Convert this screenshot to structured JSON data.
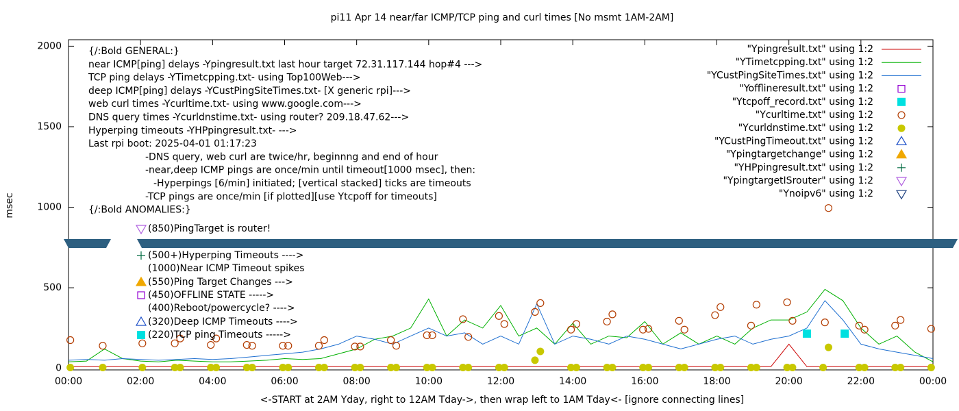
{
  "chart_data": {
    "type": "line",
    "title": "pi11 Apr 14  near/far ICMP/TCP ping and curl times [No msmt 1AM-2AM]",
    "xlabel": "<-START at 2AM Yday, right to 12AM Tday->, then wrap left to 1AM Tday<- [ignore connecting lines]",
    "ylabel": "msec",
    "xlim": [
      0,
      24
    ],
    "ylim": [
      -10,
      2040
    ],
    "xticks": [
      {
        "value": 0,
        "label": "00:00"
      },
      {
        "value": 2,
        "label": "02:00"
      },
      {
        "value": 4,
        "label": "04:00"
      },
      {
        "value": 6,
        "label": "06:00"
      },
      {
        "value": 8,
        "label": "08:00"
      },
      {
        "value": 10,
        "label": "10:00"
      },
      {
        "value": 12,
        "label": "12:00"
      },
      {
        "value": 14,
        "label": "14:00"
      },
      {
        "value": 16,
        "label": "16:00"
      },
      {
        "value": 18,
        "label": "18:00"
      },
      {
        "value": 20,
        "label": "20:00"
      },
      {
        "value": 22,
        "label": "22:00"
      },
      {
        "value": 24,
        "label": "00:00"
      }
    ],
    "yticks": [
      0,
      500,
      1000,
      1500,
      2000
    ],
    "legend": "upper right",
    "annotations": [
      "{/:Bold GENERAL:}",
      "near ICMP[ping] delays -Ypingresult.txt last hour target 72.31.117.144 hop#4 --->",
      "TCP ping delays -YTimetcpping.txt- using Top100Web--->",
      "deep ICMP[ping] delays -YCustPingSiteTimes.txt- [X generic rpi]--->",
      "web curl times -Ycurltime.txt- using www.google.com--->",
      "DNS query times -Ycurldnstime.txt- using router? 209.18.47.62--->",
      "Hyperping timeouts -YHPpingresult.txt- --->",
      "Last rpi boot: 2025-04-01 01:17:23",
      "-DNS query, web curl are twice/hr, beginnng and end of hour",
      "-near,deep ICMP pings are once/min until timeout[1000 msec], then:",
      "-Hyperpings [6/min] initiated; [vertical stacked] ticks are timeouts",
      "-TCP pings are once/min [if plotted][use Ytcpoff for timeouts]",
      "{/:Bold ANOMALIES:}"
    ],
    "key_notes": [
      "(850)PingTarget is router!",
      "(500+)Hyperping Timeouts ---->",
      "(1000)Near ICMP Timeout spikes",
      "(550)Ping Target Changes --->",
      "(450)OFFLINE STATE ----->",
      "(400)Reboot/powercycle? ---->",
      "(320)Deep ICMP Timeouts ---->",
      "(220)TCP ping Timeouts ----->"
    ],
    "series": [
      {
        "name": "\"Ypingresult.txt\" using 1:2",
        "color": "#cc0000",
        "marker": "line",
        "x": [
          0,
          0.5,
          1,
          1.5,
          2,
          2.5,
          3,
          3.5,
          4,
          4.5,
          5,
          5.5,
          6,
          6.5,
          7,
          7.5,
          8,
          8.5,
          9,
          9.5,
          10,
          10.5,
          11,
          11.5,
          12,
          12.5,
          13,
          13.5,
          14,
          14.5,
          15,
          15.5,
          16,
          16.5,
          17,
          17.5,
          18,
          18.5,
          19,
          19.5,
          20,
          20.5,
          21,
          21.5,
          22,
          22.5,
          23,
          23.5,
          24
        ],
        "values": [
          10,
          10,
          10,
          10,
          10,
          10,
          10,
          10,
          10,
          10,
          10,
          10,
          10,
          10,
          10,
          10,
          10,
          10,
          10,
          10,
          10,
          10,
          10,
          10,
          10,
          10,
          10,
          10,
          10,
          10,
          10,
          10,
          10,
          10,
          10,
          10,
          10,
          10,
          10,
          10,
          150,
          10,
          10,
          10,
          10,
          10,
          10,
          10,
          10
        ]
      },
      {
        "name": "\"YTimetcpping.txt\" using 1:2",
        "color": "#00b000",
        "marker": "line",
        "x": [
          0,
          0.5,
          1,
          1.5,
          2,
          2.5,
          3,
          3.5,
          4,
          4.5,
          5,
          5.5,
          6,
          6.5,
          7,
          7.5,
          8,
          8.5,
          9,
          9.5,
          10,
          10.5,
          11,
          11.5,
          12,
          12.5,
          13,
          13.5,
          14,
          14.5,
          15,
          15.5,
          16,
          16.5,
          17,
          17.5,
          18,
          18.5,
          19,
          19.5,
          20,
          20.5,
          21,
          21.5,
          22,
          22.5,
          23,
          23.5,
          24
        ],
        "values": [
          40,
          45,
          120,
          60,
          45,
          40,
          50,
          45,
          40,
          40,
          45,
          50,
          60,
          55,
          60,
          90,
          120,
          180,
          200,
          250,
          430,
          200,
          300,
          250,
          390,
          200,
          250,
          150,
          280,
          150,
          200,
          190,
          290,
          150,
          220,
          150,
          200,
          150,
          250,
          300,
          300,
          350,
          490,
          420,
          250,
          150,
          200,
          100,
          40
        ]
      },
      {
        "name": "\"YCustPingSiteTimes.txt\" using 1:2",
        "color": "#1e6fd0",
        "marker": "line",
        "x": [
          0,
          0.5,
          1,
          1.5,
          2,
          2.5,
          3,
          3.5,
          4,
          4.5,
          5,
          5.5,
          6,
          6.5,
          7,
          7.5,
          8,
          8.5,
          9,
          9.5,
          10,
          10.5,
          11,
          11.5,
          12,
          12.5,
          13,
          13.5,
          14,
          14.5,
          15,
          15.5,
          16,
          16.5,
          17,
          17.5,
          18,
          18.5,
          19,
          19.5,
          20,
          20.5,
          21,
          21.5,
          22,
          22.5,
          23,
          23.5,
          24
        ],
        "values": [
          50,
          55,
          50,
          60,
          55,
          50,
          55,
          60,
          55,
          60,
          70,
          80,
          90,
          100,
          120,
          150,
          200,
          180,
          150,
          200,
          250,
          200,
          220,
          150,
          200,
          150,
          400,
          150,
          200,
          180,
          150,
          200,
          180,
          150,
          120,
          150,
          180,
          200,
          150,
          180,
          200,
          250,
          420,
          300,
          150,
          120,
          100,
          80,
          60
        ]
      },
      {
        "name": "\"Yofflineresult.txt\" using 1:2",
        "color": "#9400d3",
        "marker": "square-open",
        "x": [],
        "values": []
      },
      {
        "name": "\"Ytcpoff_record.txt\" using 1:2",
        "color": "#00e0e0",
        "marker": "square",
        "x": [
          20.5,
          21.55
        ],
        "values": [
          215,
          215
        ]
      },
      {
        "name": "\"Ycurltime.txt\" using 1:2",
        "color": "#b33c00",
        "marker": "circle-open",
        "x": [
          0.05,
          0.95,
          2.05,
          2.95,
          3.1,
          3.95,
          4.1,
          4.95,
          5.1,
          5.95,
          6.1,
          6.95,
          7.1,
          7.95,
          8.1,
          8.95,
          9.1,
          9.95,
          10.1,
          10.95,
          11.1,
          11.95,
          12.1,
          12.95,
          13.1,
          13.95,
          14.1,
          14.95,
          15.1,
          15.95,
          16.1,
          16.95,
          17.1,
          17.95,
          18.1,
          18.95,
          19.1,
          19.95,
          20.1,
          21.0,
          21.1,
          21.95,
          22.1,
          22.95,
          23.1,
          23.95
        ],
        "values": [
          175,
          140,
          155,
          155,
          185,
          145,
          185,
          145,
          140,
          140,
          140,
          140,
          175,
          135,
          135,
          175,
          140,
          205,
          205,
          305,
          195,
          325,
          275,
          350,
          405,
          240,
          275,
          290,
          335,
          240,
          245,
          295,
          240,
          330,
          380,
          265,
          395,
          410,
          295,
          285,
          995,
          265,
          240,
          265,
          300,
          245
        ]
      },
      {
        "name": "\"Ycurldnstime.txt\" using 1:2",
        "color": "#c8c800",
        "marker": "circle",
        "x": [
          0.05,
          0.95,
          2.05,
          2.95,
          3.1,
          3.95,
          4.1,
          4.95,
          5.1,
          5.95,
          6.1,
          6.95,
          7.1,
          7.95,
          8.1,
          8.95,
          9.1,
          9.95,
          10.1,
          10.95,
          11.1,
          11.95,
          12.1,
          12.95,
          13.1,
          13.95,
          14.1,
          14.95,
          15.1,
          15.95,
          16.1,
          16.95,
          17.1,
          17.95,
          18.1,
          18.95,
          19.1,
          19.95,
          20.1,
          20.95,
          21.1,
          21.95,
          22.1,
          22.95,
          23.1,
          23.95
        ],
        "values": [
          5,
          5,
          5,
          5,
          5,
          5,
          5,
          5,
          5,
          5,
          5,
          5,
          5,
          5,
          5,
          5,
          5,
          5,
          5,
          5,
          5,
          5,
          5,
          50,
          105,
          5,
          5,
          5,
          5,
          5,
          5,
          5,
          5,
          5,
          5,
          5,
          5,
          5,
          5,
          5,
          130,
          5,
          5,
          5,
          5,
          5
        ]
      },
      {
        "name": "\"YCustPingTimeout.txt\" using 1:2",
        "color": "#1e50c8",
        "marker": "triangle-up-open",
        "x": [],
        "values": []
      },
      {
        "name": "\"Ypingtargetchange\" using 1:2",
        "color": "#f0a800",
        "marker": "triangle-up",
        "x": [],
        "values": []
      },
      {
        "name": "\"YHPpingresult.txt\" using 1:2",
        "color": "#006a40",
        "marker": "plus",
        "x": [],
        "values": []
      },
      {
        "name": "\"YpingtargetISrouter\" using 1:2",
        "color": "#b060e0",
        "marker": "triangle-down-open",
        "x": [],
        "values": []
      },
      {
        "name": "\"Ynoipv6\" using 1:2",
        "color": "#1e4080",
        "marker": "triangle-down-open",
        "x": [],
        "values": []
      }
    ]
  }
}
